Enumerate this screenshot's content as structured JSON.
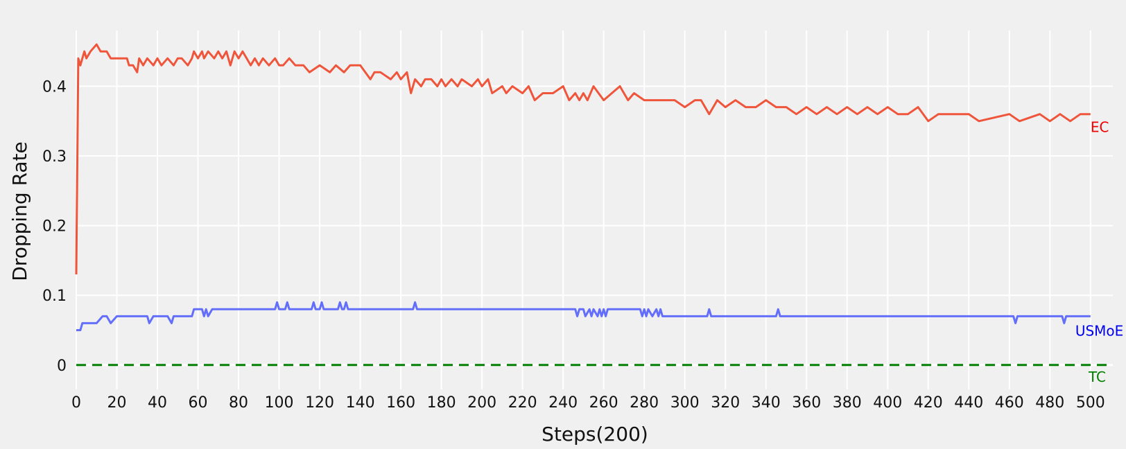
{
  "chart_data": {
    "type": "line",
    "title": "",
    "xlabel": "Steps(200)",
    "ylabel": "Dropping Rate",
    "xlim": [
      0,
      511
    ],
    "ylim": [
      -0.035,
      0.48
    ],
    "grid": true,
    "x_ticks": [
      0,
      20,
      40,
      60,
      80,
      100,
      120,
      140,
      160,
      180,
      200,
      220,
      240,
      260,
      280,
      300,
      320,
      340,
      360,
      380,
      400,
      420,
      440,
      460,
      480,
      500
    ],
    "y_ticks": [
      0,
      0.1,
      0.2,
      0.3,
      0.4
    ],
    "y_tick_labels": [
      "0",
      "0.1",
      "0.2",
      "0.3",
      "0.4"
    ],
    "colors": {
      "background": "#f0f0f0",
      "grid": "#ffffff"
    },
    "series": [
      {
        "name": "EC",
        "color": "#ef553b",
        "label_color": "#ee0000",
        "dash": "solid",
        "x": [
          0,
          1,
          2,
          3,
          4,
          5,
          7,
          10,
          12,
          15,
          17,
          20,
          25,
          26,
          28,
          30,
          31,
          33,
          35,
          38,
          40,
          42,
          45,
          48,
          50,
          52,
          55,
          57,
          58,
          60,
          62,
          63,
          65,
          68,
          70,
          72,
          74,
          76,
          78,
          80,
          82,
          84,
          86,
          88,
          90,
          92,
          95,
          98,
          100,
          102,
          105,
          108,
          112,
          115,
          120,
          125,
          128,
          132,
          135,
          140,
          145,
          147,
          150,
          155,
          158,
          160,
          163,
          165,
          167,
          170,
          172,
          175,
          178,
          180,
          182,
          185,
          188,
          190,
          195,
          198,
          200,
          203,
          205,
          210,
          212,
          215,
          220,
          223,
          226,
          230,
          235,
          240,
          243,
          246,
          248,
          250,
          252,
          255,
          260,
          264,
          268,
          272,
          275,
          280,
          285,
          290,
          295,
          300,
          305,
          308,
          312,
          316,
          320,
          325,
          330,
          335,
          340,
          345,
          350,
          355,
          360,
          365,
          370,
          375,
          380,
          385,
          390,
          395,
          400,
          405,
          410,
          415,
          420,
          425,
          430,
          440,
          445,
          460,
          465,
          475,
          480,
          485,
          490,
          495,
          500
        ],
        "y": [
          0.13,
          0.44,
          0.43,
          0.44,
          0.45,
          0.44,
          0.45,
          0.46,
          0.45,
          0.45,
          0.44,
          0.44,
          0.44,
          0.43,
          0.43,
          0.42,
          0.44,
          0.43,
          0.44,
          0.43,
          0.44,
          0.43,
          0.44,
          0.43,
          0.44,
          0.44,
          0.43,
          0.44,
          0.45,
          0.44,
          0.45,
          0.44,
          0.45,
          0.44,
          0.45,
          0.44,
          0.45,
          0.43,
          0.45,
          0.44,
          0.45,
          0.44,
          0.43,
          0.44,
          0.43,
          0.44,
          0.43,
          0.44,
          0.43,
          0.43,
          0.44,
          0.43,
          0.43,
          0.42,
          0.43,
          0.42,
          0.43,
          0.42,
          0.43,
          0.43,
          0.41,
          0.42,
          0.42,
          0.41,
          0.42,
          0.41,
          0.42,
          0.39,
          0.41,
          0.4,
          0.41,
          0.41,
          0.4,
          0.41,
          0.4,
          0.41,
          0.4,
          0.41,
          0.4,
          0.41,
          0.4,
          0.41,
          0.39,
          0.4,
          0.39,
          0.4,
          0.39,
          0.4,
          0.38,
          0.39,
          0.39,
          0.4,
          0.38,
          0.39,
          0.38,
          0.39,
          0.38,
          0.4,
          0.38,
          0.39,
          0.4,
          0.38,
          0.39,
          0.38,
          0.38,
          0.38,
          0.38,
          0.37,
          0.38,
          0.38,
          0.36,
          0.38,
          0.37,
          0.38,
          0.37,
          0.37,
          0.38,
          0.37,
          0.37,
          0.36,
          0.37,
          0.36,
          0.37,
          0.36,
          0.37,
          0.36,
          0.37,
          0.36,
          0.37,
          0.36,
          0.36,
          0.37,
          0.35,
          0.36,
          0.36,
          0.36,
          0.35,
          0.36,
          0.35,
          0.36,
          0.35,
          0.36,
          0.35,
          0.36,
          0.36
        ]
      },
      {
        "name": "USMoE",
        "color": "#636efa",
        "label_color": "#0000ee",
        "dash": "solid",
        "x": [
          0,
          2,
          3,
          5,
          8,
          10,
          13,
          15,
          17,
          20,
          25,
          30,
          35,
          36,
          38,
          45,
          47,
          48,
          50,
          55,
          57,
          58,
          60,
          62,
          63,
          64,
          65,
          67,
          70,
          80,
          90,
          98,
          99,
          100,
          103,
          104,
          105,
          110,
          116,
          117,
          118,
          120,
          121,
          122,
          125,
          129,
          130,
          131,
          132,
          133,
          134,
          140,
          150,
          160,
          166,
          167,
          168,
          175,
          200,
          220,
          240,
          246,
          247,
          248,
          250,
          251,
          253,
          254,
          255,
          257,
          258,
          259,
          260,
          261,
          262,
          270,
          278,
          279,
          280,
          281,
          282,
          284,
          286,
          287,
          288,
          289,
          290,
          300,
          311,
          312,
          313,
          330,
          345,
          346,
          347,
          380,
          420,
          462,
          463,
          464,
          480,
          486,
          487,
          488,
          490,
          500
        ],
        "y": [
          0.05,
          0.05,
          0.06,
          0.06,
          0.06,
          0.06,
          0.07,
          0.07,
          0.06,
          0.07,
          0.07,
          0.07,
          0.07,
          0.06,
          0.07,
          0.07,
          0.06,
          0.07,
          0.07,
          0.07,
          0.07,
          0.08,
          0.08,
          0.08,
          0.07,
          0.08,
          0.07,
          0.08,
          0.08,
          0.08,
          0.08,
          0.08,
          0.09,
          0.08,
          0.08,
          0.09,
          0.08,
          0.08,
          0.08,
          0.09,
          0.08,
          0.08,
          0.09,
          0.08,
          0.08,
          0.08,
          0.09,
          0.08,
          0.08,
          0.09,
          0.08,
          0.08,
          0.08,
          0.08,
          0.08,
          0.09,
          0.08,
          0.08,
          0.08,
          0.08,
          0.08,
          0.08,
          0.07,
          0.08,
          0.08,
          0.07,
          0.08,
          0.07,
          0.08,
          0.07,
          0.08,
          0.07,
          0.08,
          0.07,
          0.08,
          0.08,
          0.08,
          0.07,
          0.08,
          0.07,
          0.08,
          0.07,
          0.08,
          0.07,
          0.08,
          0.07,
          0.07,
          0.07,
          0.07,
          0.08,
          0.07,
          0.07,
          0.07,
          0.08,
          0.07,
          0.07,
          0.07,
          0.07,
          0.06,
          0.07,
          0.07,
          0.07,
          0.06,
          0.07,
          0.07,
          0.07
        ]
      },
      {
        "name": "TC",
        "color": "#008000",
        "label_color": "#008000",
        "dash": "dashed",
        "x": [
          0,
          511
        ],
        "y": [
          0,
          0
        ]
      }
    ]
  }
}
